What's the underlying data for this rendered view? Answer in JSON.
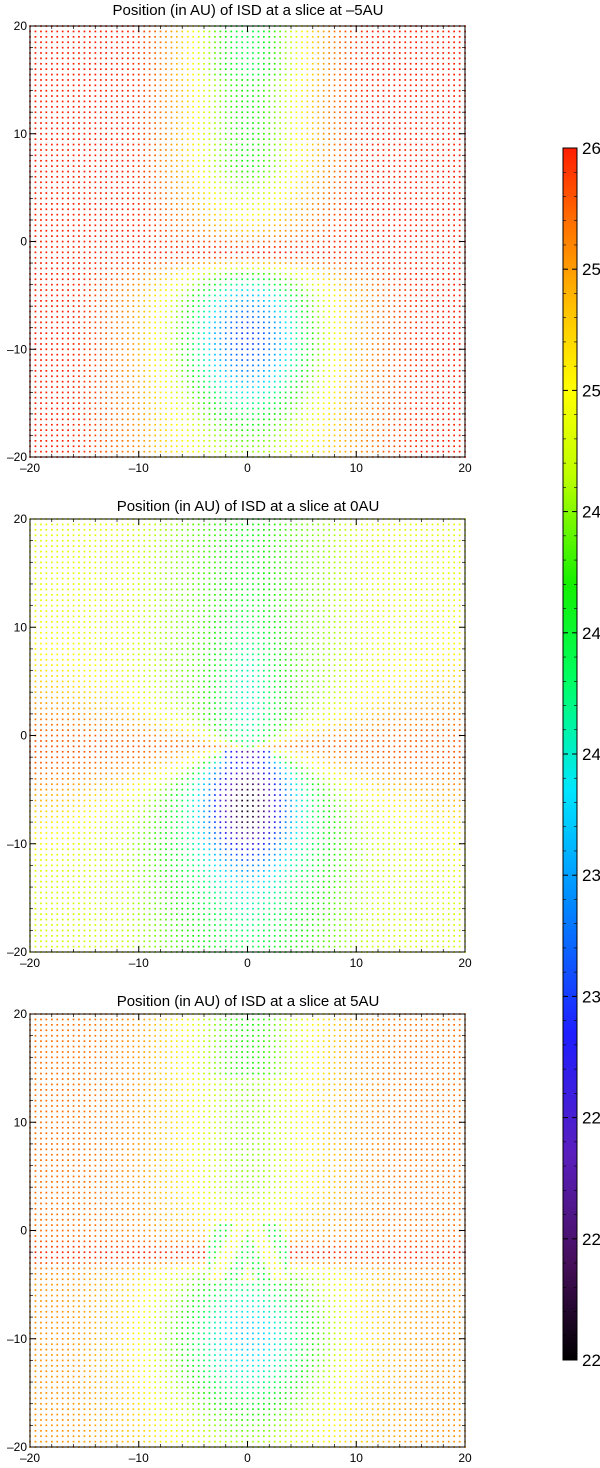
{
  "chart_data": [
    {
      "type": "scatter",
      "title": "Position (in AU) of ISD at a slice at –5AU",
      "slice_au": -5,
      "xlim": [
        -20,
        20
      ],
      "ylim": [
        -20,
        20
      ],
      "x_ticks": [
        "–20",
        "–10",
        "0",
        "10",
        "20"
      ],
      "y_ticks": [
        "20",
        "10",
        "0",
        "–10",
        "–20"
      ],
      "grid": false,
      "grid_spacing_au": 0.5,
      "colormap": "rainbow",
      "pattern": "dense grid of colored points; red band along y≈-1, yellow/green above, cyan focused below center"
    },
    {
      "type": "scatter",
      "title": "Position (in AU) of ISD at a slice at 0AU",
      "slice_au": 0,
      "xlim": [
        -20,
        20
      ],
      "ylim": [
        -20,
        20
      ],
      "x_ticks": [
        "–20",
        "–10",
        "0",
        "10",
        "20"
      ],
      "y_ticks": [
        "20",
        "10",
        "0",
        "–10",
        "–20"
      ],
      "grid": false,
      "grid_spacing_au": 0.5,
      "colormap": "rainbow",
      "pattern": "X-shaped red wedges converging at origin; blue/black void just below center"
    },
    {
      "type": "scatter",
      "title": "Position (in AU) of ISD at a slice at 5AU",
      "slice_au": 5,
      "xlim": [
        -20,
        20
      ],
      "ylim": [
        -20,
        20
      ],
      "x_ticks": [
        "–20",
        "–10",
        "0",
        "10",
        "20"
      ],
      "y_ticks": [
        "20",
        "10",
        "0",
        "–10",
        "–20"
      ],
      "grid": false,
      "grid_spacing_au": 0.5,
      "colormap": "rainbow",
      "pattern": "red band along y≈-2 with disturbed green/yellow region near center"
    }
  ],
  "colorbar": {
    "labels": [
      "26",
      "25",
      "25",
      "24",
      "24",
      "24",
      "23",
      "23",
      "22",
      "22",
      "22"
    ],
    "min": 22,
    "max": 26,
    "colors": [
      "#000000",
      "#3a0a4a",
      "#5a20b0",
      "#2020ff",
      "#0090ff",
      "#00ffff",
      "#00ff40",
      "#00ff00",
      "#b0ff00",
      "#ffff00",
      "#ffc000",
      "#ff7000",
      "#ff2000"
    ]
  }
}
